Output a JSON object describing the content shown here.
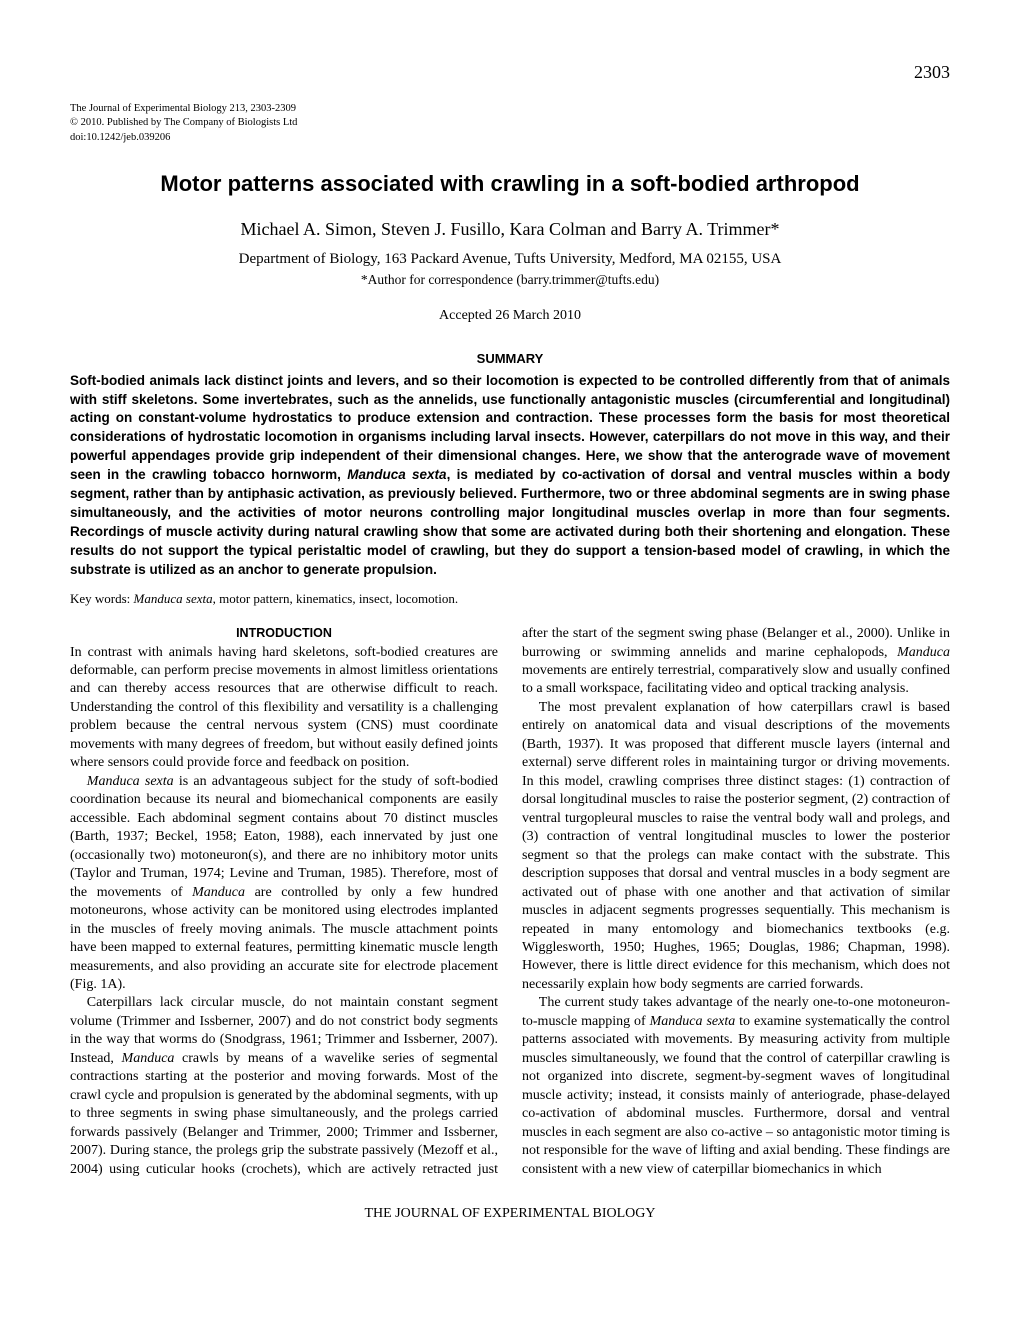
{
  "page_number": "2303",
  "journal": {
    "line1": "The Journal of Experimental Biology 213, 2303-2309",
    "line2": "© 2010. Published by The Company of Biologists Ltd",
    "line3": "doi:10.1242/jeb.039206"
  },
  "title": "Motor patterns associated with crawling in a soft-bodied arthropod",
  "authors": "Michael A. Simon, Steven J. Fusillo, Kara Colman and Barry A. Trimmer*",
  "affiliation": "Department of Biology, 163 Packard Avenue, Tufts University, Medford, MA 02155, USA",
  "correspondence": "*Author for correspondence (barry.trimmer@tufts.edu)",
  "accepted": "Accepted 26 March 2010",
  "summary_head": "SUMMARY",
  "summary_pre": "Soft-bodied animals lack distinct joints and levers, and so their locomotion is expected to be controlled differently from that of animals with stiff skeletons. Some invertebrates, such as the annelids, use functionally antagonistic muscles (circumferential and longitudinal) acting on constant-volume hydrostatics to produce extension and contraction. These processes form the basis for most theoretical considerations of hydrostatic locomotion in organisms including larval insects. However, caterpillars do not move in this way, and their powerful appendages provide grip independent of their dimensional changes. Here, we show that the anterograde wave of movement seen in the crawling tobacco hornworm, ",
  "summary_ital": "Manduca sexta",
  "summary_post": ", is mediated by co-activation of dorsal and ventral muscles within a body segment, rather than by antiphasic activation, as previously believed. Furthermore, two or three abdominal segments are in swing phase simultaneously, and the activities of motor neurons controlling major longitudinal muscles overlap in more than four segments. Recordings of muscle activity during natural crawling show that some are activated during both their shortening and elongation. These results do not support the typical peristaltic model of crawling, but they do support a tension-based model of crawling, in which the substrate is utilized as an anchor to generate propulsion.",
  "keywords_label": "Key words: ",
  "keywords_ital": "Manduca sexta",
  "keywords_rest": ", motor pattern, kinematics, insect, locomotion.",
  "intro_head": "INTRODUCTION",
  "intro_p1": "In contrast with animals having hard skeletons, soft-bodied creatures are deformable, can perform precise movements in almost limitless orientations and can thereby access resources that are otherwise difficult to reach. Understanding the control of this flexibility and versatility is a challenging problem because the central nervous system (CNS) must coordinate movements with many degrees of freedom, but without easily defined joints where sensors could provide force and feedback on position.",
  "intro_p2_i1": "Manduca sexta",
  "intro_p2_a": " is an advantageous subject for the study of soft-bodied coordination because its neural and biomechanical components are easily accessible. Each abdominal segment contains about 70 distinct muscles (Barth, 1937; Beckel, 1958; Eaton, 1988), each innervated by just one (occasionally two) motoneuron(s), and there are no inhibitory motor units (Taylor and Truman, 1974; Levine and Truman, 1985). Therefore, most of the movements of ",
  "intro_p2_i2": "Manduca",
  "intro_p2_b": " are controlled by only a few hundred motoneurons, whose activity can be monitored using electrodes implanted in the muscles of freely moving animals. The muscle attachment points have been mapped to external features, permitting kinematic muscle length measurements, and also providing an accurate site for electrode placement (Fig. 1A).",
  "intro_p3_a": "Caterpillars lack circular muscle, do not maintain constant segment volume (Trimmer and Issberner, 2007) and do not constrict body segments in the way that worms do (Snodgrass, 1961; Trimmer and Issberner, 2007). Instead, ",
  "intro_p3_i1": "Manduca",
  "intro_p3_b": " crawls by means of a wavelike series of segmental contractions starting at the posterior and moving forwards. Most of the crawl cycle and propulsion is generated by the abdominal segments, with up to three segments in swing phase simultaneously, and the prolegs carried forwards passively (Belanger and Trimmer, 2000; Trimmer and Issberner, 2007). During stance, the prolegs grip the substrate passively (Mezoff et al., 2004) using cuticular hooks (crochets), which are actively retracted just after the start of the ",
  "intro_p3_c": "segment swing phase (Belanger et al., 2000). Unlike in burrowing or swimming annelids and marine cephalopods, ",
  "intro_p3_i2": "Manduca",
  "intro_p3_d": " movements are entirely terrestrial, comparatively slow and usually confined to a small workspace, facilitating video and optical tracking analysis.",
  "intro_p4": "The most prevalent explanation of how caterpillars crawl is based entirely on anatomical data and visual descriptions of the movements (Barth, 1937). It was proposed that different muscle layers (internal and external) serve different roles in maintaining turgor or driving movements. In this model, crawling comprises three distinct stages: (1) contraction of dorsal longitudinal muscles to raise the posterior segment, (2) contraction of ventral turgopleural muscles to raise the ventral body wall and prolegs, and (3) contraction of ventral longitudinal muscles to lower the posterior segment so that the prolegs can make contact with the substrate. This description supposes that dorsal and ventral muscles in a body segment are activated out of phase with one another and that activation of similar muscles in adjacent segments progresses sequentially. This mechanism is repeated in many entomology and biomechanics textbooks (e.g. Wigglesworth, 1950; Hughes, 1965; Douglas, 1986; Chapman, 1998). However, there is little direct evidence for this mechanism, which does not necessarily explain how body segments are carried forwards.",
  "intro_p5_a": "The current study takes advantage of the nearly one-to-one motoneuron-to-muscle mapping of ",
  "intro_p5_i1": "Manduca sexta",
  "intro_p5_b": " to examine systematically the control patterns associated with movements. By measuring activity from multiple muscles simultaneously, we found that the control of caterpillar crawling is not organized into discrete, segment-by-segment waves of longitudinal muscle activity; instead, it consists mainly of anteriograde, phase-delayed co-activation of abdominal muscles. Furthermore, dorsal and ventral muscles in each segment are also co-active – so antagonistic motor timing is not responsible for the wave of lifting and axial bending. These findings are consistent with a new view of caterpillar biomechanics in which",
  "footer": "THE JOURNAL OF EXPERIMENTAL BIOLOGY"
}
